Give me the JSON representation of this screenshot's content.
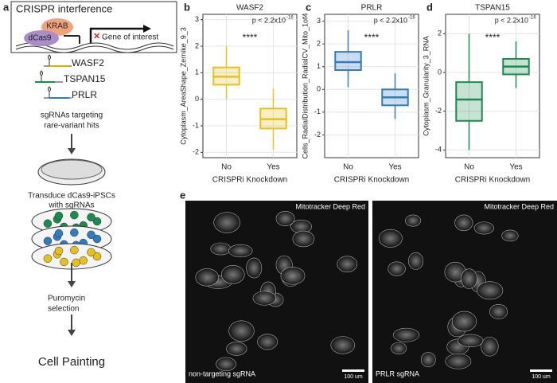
{
  "panel_a": {
    "letter": "a",
    "box_title": "CRISPR interference",
    "krab": "KRAB",
    "dcas9": "dCas9",
    "gene": "Gene of interest",
    "guides": [
      "WASF2",
      "TSPAN15",
      "PRLR"
    ],
    "step1": [
      "sgRNAs targeting",
      "rare-variant hits"
    ],
    "step2": [
      "Transduce dCas9-iPSCs",
      "with sgRNAs"
    ],
    "step3": [
      "Puromycin",
      "selection"
    ],
    "result": "Cell Painting"
  },
  "chart_data": [
    {
      "type": "box",
      "panel": "b",
      "title": "WASF2",
      "y_label": "Cytoplasm_AreaShape_Zernike_9_3",
      "x_label": "CRISPRi Knockdown",
      "categories": [
        "No",
        "Yes"
      ],
      "color": "#e6c11e",
      "whisker_low": [
        0.0,
        -1.9
      ],
      "q1": [
        0.55,
        -1.1
      ],
      "median": [
        0.85,
        -0.75
      ],
      "q3": [
        1.2,
        -0.35
      ],
      "whisker_high": [
        2.0,
        0.4
      ],
      "ylim": [
        -2.2,
        3.2
      ],
      "yticks": [
        -2,
        -1,
        0,
        1,
        2,
        3
      ],
      "annotation": "p < 2.2x10",
      "annotation_exponent": "-16",
      "significance": "****"
    },
    {
      "type": "box",
      "panel": "c",
      "title": "PRLR",
      "y_label": "Cells_RadialDistribution_RadialCV_Mito_1of4",
      "x_label": "CRISPRi Knockdown",
      "categories": [
        "No",
        "Yes"
      ],
      "color": "#2f7cc0",
      "whisker_low": [
        0.1,
        -1.3
      ],
      "q1": [
        0.85,
        -0.7
      ],
      "median": [
        1.2,
        -0.35
      ],
      "q3": [
        1.65,
        0.0
      ],
      "whisker_high": [
        2.6,
        0.7
      ],
      "ylim": [
        -3.0,
        3.3
      ],
      "yticks": [
        -2,
        -1,
        0,
        1,
        2,
        3
      ],
      "annotation": "p < 2.2x10",
      "annotation_exponent": "-16",
      "significance": "****"
    },
    {
      "type": "box",
      "panel": "d",
      "title": "TSPAN15",
      "y_label": "Cytoplasm_Granularity_3_RNA",
      "x_label": "CRISPRi Knockdown",
      "categories": [
        "No",
        "Yes"
      ],
      "color": "#1a8c4e",
      "whisker_low": [
        -4.0,
        -0.8
      ],
      "q1": [
        -2.5,
        -0.1
      ],
      "median": [
        -1.4,
        0.3
      ],
      "q3": [
        -0.5,
        0.7
      ],
      "whisker_high": [
        2.0,
        1.6
      ],
      "ylim": [
        -4.4,
        3.0
      ],
      "yticks": [
        -4,
        -2,
        0,
        2
      ],
      "annotation": "p < 2.2x10",
      "annotation_exponent": "-16",
      "significance": "****"
    }
  ],
  "panel_e": {
    "letter": "e",
    "left": {
      "stain": "Mitotracker Deep Red",
      "condition": "non-targeting sgRNA",
      "scale": "100 um"
    },
    "right": {
      "stain": "Mitotracker Deep Red",
      "condition": "PRLR sgRNA",
      "scale": "100 um"
    }
  }
}
